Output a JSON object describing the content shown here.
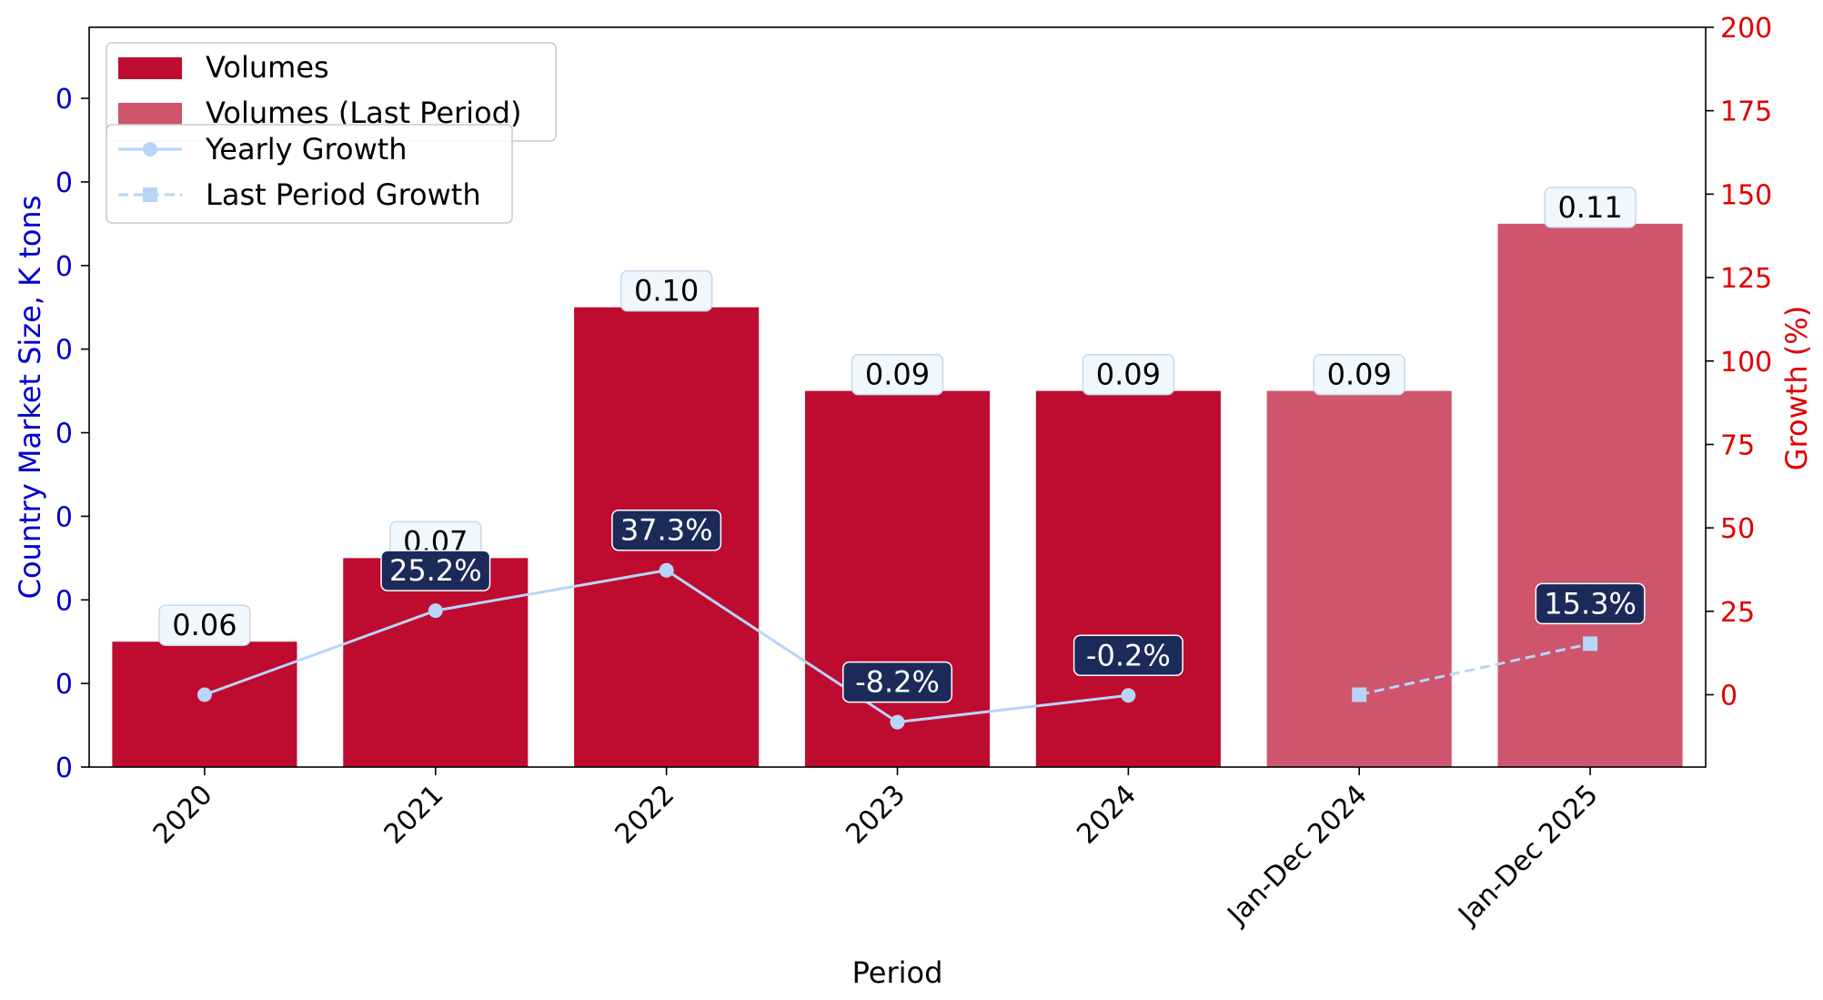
{
  "chart_data": {
    "type": "bar",
    "categories": [
      "2020",
      "2021",
      "2022",
      "2023",
      "2024",
      "Jan-Dec 2024",
      "Jan-Dec 2025"
    ],
    "series": [
      {
        "name": "Volumes",
        "kind": "bar",
        "axis": "left",
        "color": "#BE0B30",
        "values": [
          0.06,
          0.07,
          0.1,
          0.09,
          0.09,
          null,
          null
        ],
        "labels": [
          "0.06",
          "0.07",
          "0.10",
          "0.09",
          "0.09",
          "",
          ""
        ]
      },
      {
        "name": "Volumes (Last Period)",
        "kind": "bar",
        "axis": "left",
        "color": "#CE556C",
        "values": [
          null,
          null,
          null,
          null,
          null,
          0.09,
          0.11
        ],
        "labels": [
          "",
          "",
          "",
          "",
          "",
          "0.09",
          "0.11"
        ]
      },
      {
        "name": "Yearly Growth",
        "kind": "line",
        "axis": "right",
        "color": "#B8D5F7",
        "marker": "circle",
        "dash": "solid",
        "values": [
          0,
          25.2,
          37.3,
          -8.2,
          -0.2,
          null,
          null
        ],
        "labels": [
          "",
          "25.2%",
          "37.3%",
          "-8.2%",
          "-0.2%",
          "",
          ""
        ]
      },
      {
        "name": "Last Period Growth",
        "kind": "line",
        "axis": "right",
        "color": "#B8D5F7",
        "marker": "square",
        "dash": "dashed",
        "values": [
          null,
          null,
          null,
          null,
          null,
          0,
          15.3
        ],
        "labels": [
          "",
          "",
          "",
          "",
          "",
          "",
          "15.3%"
        ]
      }
    ],
    "xlabel": "Period",
    "ylabel_left": "Country Market Size, K tons",
    "ylabel_right": "Growth (%)",
    "ylim_left": [
      0.045,
      0.1335
    ],
    "ylim_right": [
      -21.67,
      200
    ],
    "left_ticks": [
      0.045,
      0.055,
      0.065,
      0.075,
      0.085,
      0.095,
      0.105,
      0.115,
      0.125
    ],
    "left_tick_labels": [
      "0",
      "0",
      "0",
      "0",
      "0",
      "0",
      "0",
      "0",
      "0"
    ],
    "right_ticks": [
      0,
      25,
      50,
      75,
      100,
      125,
      150,
      175,
      200
    ],
    "right_tick_labels": [
      "0",
      "25",
      "50",
      "75",
      "100",
      "125",
      "150",
      "175",
      "200"
    ],
    "left_axis_color": "#0000CC",
    "right_axis_color": "#E00000",
    "growth_label_bg": "#1C2A5A",
    "value_label_bg": "#F0F7FD",
    "legend_position": "top-left",
    "grid": false
  }
}
